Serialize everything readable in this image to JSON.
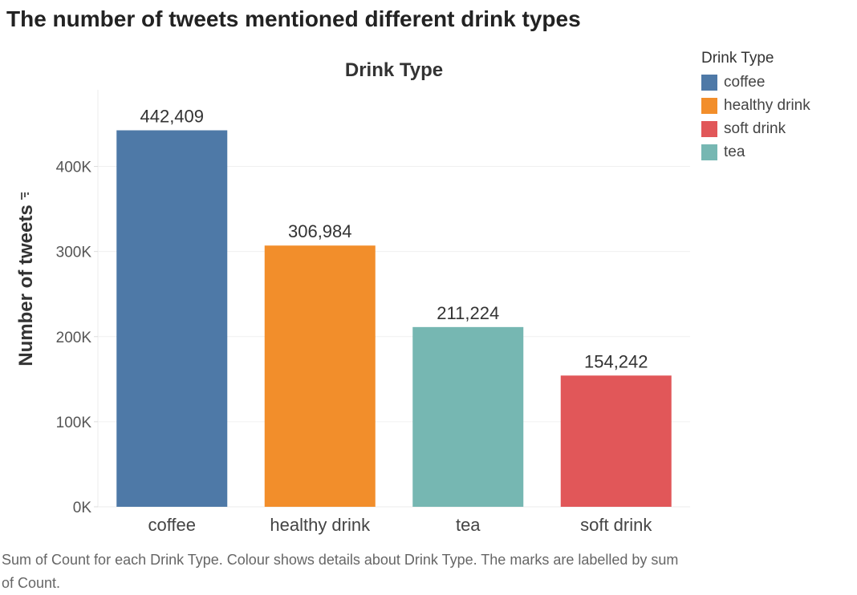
{
  "title": "The number of tweets mentioned different drink types",
  "caption": "Sum of Count for each Drink Type.  Colour shows details about Drink Type.  The marks are labelled by sum of Count.",
  "legend": {
    "title": "Drink Type",
    "items": [
      {
        "label": "coffee",
        "color": "#4e79a7"
      },
      {
        "label": "healthy drink",
        "color": "#f28e2b"
      },
      {
        "label": "soft drink",
        "color": "#e15759"
      },
      {
        "label": "tea",
        "color": "#76b7b2"
      }
    ]
  },
  "chart_data": {
    "type": "bar",
    "title": "Drink Type",
    "xlabel": "",
    "ylabel": "Number of tweets",
    "ylim": [
      0,
      490000
    ],
    "yticks": [
      0,
      100000,
      200000,
      300000,
      400000
    ],
    "ytick_labels": [
      "0K",
      "100K",
      "200K",
      "300K",
      "400K"
    ],
    "grid": true,
    "legend": "right",
    "categories": [
      "coffee",
      "healthy drink",
      "tea",
      "soft drink"
    ],
    "values": [
      442409,
      306984,
      211224,
      154242
    ],
    "value_labels": [
      "442,409",
      "306,984",
      "211,224",
      "154,242"
    ],
    "colors": [
      "#4e79a7",
      "#f28e2b",
      "#76b7b2",
      "#e15759"
    ]
  }
}
